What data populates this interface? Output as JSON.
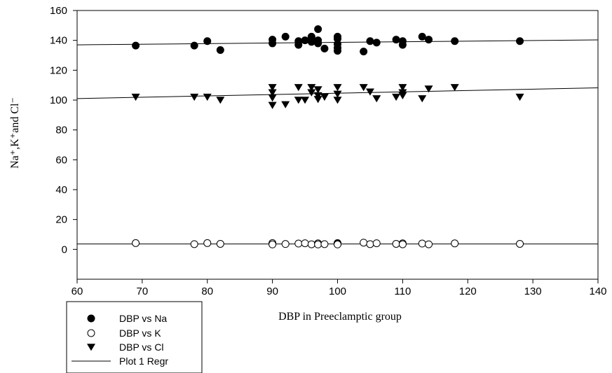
{
  "chart_data": {
    "type": "scatter",
    "xlabel": "DBP in Preeclamptic group",
    "ylabel": "Na⁺,K⁺and Cl⁻",
    "xlim": [
      60,
      140
    ],
    "ylim": [
      -20,
      160
    ],
    "xticks": [
      60,
      70,
      80,
      90,
      100,
      110,
      120,
      130,
      140
    ],
    "yticks": [
      0,
      20,
      40,
      60,
      80,
      100,
      120,
      140,
      160
    ],
    "grid": false,
    "legend_position": "bottom-left",
    "series": [
      {
        "name": "DBP vs Na",
        "marker": "filled-circle",
        "points": [
          [
            69,
            136.5
          ],
          [
            78,
            136.5
          ],
          [
            80,
            139.5
          ],
          [
            82,
            133.5
          ],
          [
            90,
            140.5
          ],
          [
            90,
            138
          ],
          [
            92,
            142.5
          ],
          [
            94,
            139.5
          ],
          [
            94,
            137
          ],
          [
            95,
            140
          ],
          [
            96,
            142.5
          ],
          [
            96,
            139
          ],
          [
            97,
            147.5
          ],
          [
            97,
            140
          ],
          [
            97,
            138
          ],
          [
            98,
            134.5
          ],
          [
            100,
            142.5
          ],
          [
            100,
            141
          ],
          [
            100,
            137.5
          ],
          [
            100,
            135
          ],
          [
            100,
            133
          ],
          [
            104,
            132.5
          ],
          [
            105,
            139.5
          ],
          [
            106,
            138.5
          ],
          [
            109,
            140.5
          ],
          [
            110,
            139.5
          ],
          [
            110,
            137
          ],
          [
            113,
            142.5
          ],
          [
            114,
            140.5
          ],
          [
            118,
            139.5
          ],
          [
            128,
            139.5
          ]
        ]
      },
      {
        "name": "DBP vs K",
        "marker": "open-circle",
        "points": [
          [
            69,
            4.2
          ],
          [
            78,
            3.5
          ],
          [
            80,
            4.2
          ],
          [
            82,
            3.7
          ],
          [
            90,
            4.2
          ],
          [
            90,
            3.3
          ],
          [
            92,
            3.6
          ],
          [
            94,
            3.9
          ],
          [
            95,
            4.1
          ],
          [
            96,
            3.4
          ],
          [
            97,
            4.0
          ],
          [
            97,
            3.3
          ],
          [
            98,
            3.5
          ],
          [
            100,
            4.2
          ],
          [
            100,
            3.8
          ],
          [
            100,
            3.3
          ],
          [
            104,
            4.5
          ],
          [
            105,
            3.5
          ],
          [
            106,
            4.1
          ],
          [
            109,
            3.7
          ],
          [
            110,
            4.0
          ],
          [
            110,
            3.4
          ],
          [
            113,
            3.9
          ],
          [
            114,
            3.4
          ],
          [
            118,
            4.0
          ],
          [
            128,
            3.7
          ]
        ]
      },
      {
        "name": "DBP vs Cl",
        "marker": "filled-triangle-down",
        "points": [
          [
            69,
            102
          ],
          [
            78,
            102
          ],
          [
            80,
            102
          ],
          [
            82,
            100
          ],
          [
            90,
            108.5
          ],
          [
            90,
            105
          ],
          [
            90,
            101.5
          ],
          [
            90,
            96.5
          ],
          [
            92,
            97
          ],
          [
            94,
            108.5
          ],
          [
            94,
            100
          ],
          [
            95,
            100
          ],
          [
            96,
            108.5
          ],
          [
            96,
            105
          ],
          [
            97,
            107
          ],
          [
            97,
            103
          ],
          [
            97,
            100.5
          ],
          [
            98,
            102
          ],
          [
            100,
            108.5
          ],
          [
            100,
            104
          ],
          [
            100,
            100
          ],
          [
            104,
            108.5
          ],
          [
            105,
            105.5
          ],
          [
            106,
            101
          ],
          [
            109,
            102
          ],
          [
            110,
            108.5
          ],
          [
            110,
            105
          ],
          [
            110,
            103
          ],
          [
            113,
            101
          ],
          [
            114,
            107.5
          ],
          [
            118,
            108.5
          ],
          [
            128,
            102
          ]
        ]
      }
    ],
    "regression_lines": [
      {
        "series": "DBP vs Na",
        "y_at_xmin": 137.0,
        "y_at_xmax": 140.3
      },
      {
        "series": "DBP vs Cl",
        "y_at_xmin": 101.0,
        "y_at_xmax": 108.2
      },
      {
        "series": "DBP vs K",
        "y_at_xmin": 3.6,
        "y_at_xmax": 3.6
      }
    ],
    "legend": [
      {
        "label": "DBP vs Na",
        "marker": "filled-circle"
      },
      {
        "label": "DBP vs K",
        "marker": "open-circle"
      },
      {
        "label": "DBP vs Cl",
        "marker": "filled-triangle-down"
      },
      {
        "label": "Plot 1 Regr",
        "marker": "line"
      }
    ]
  }
}
